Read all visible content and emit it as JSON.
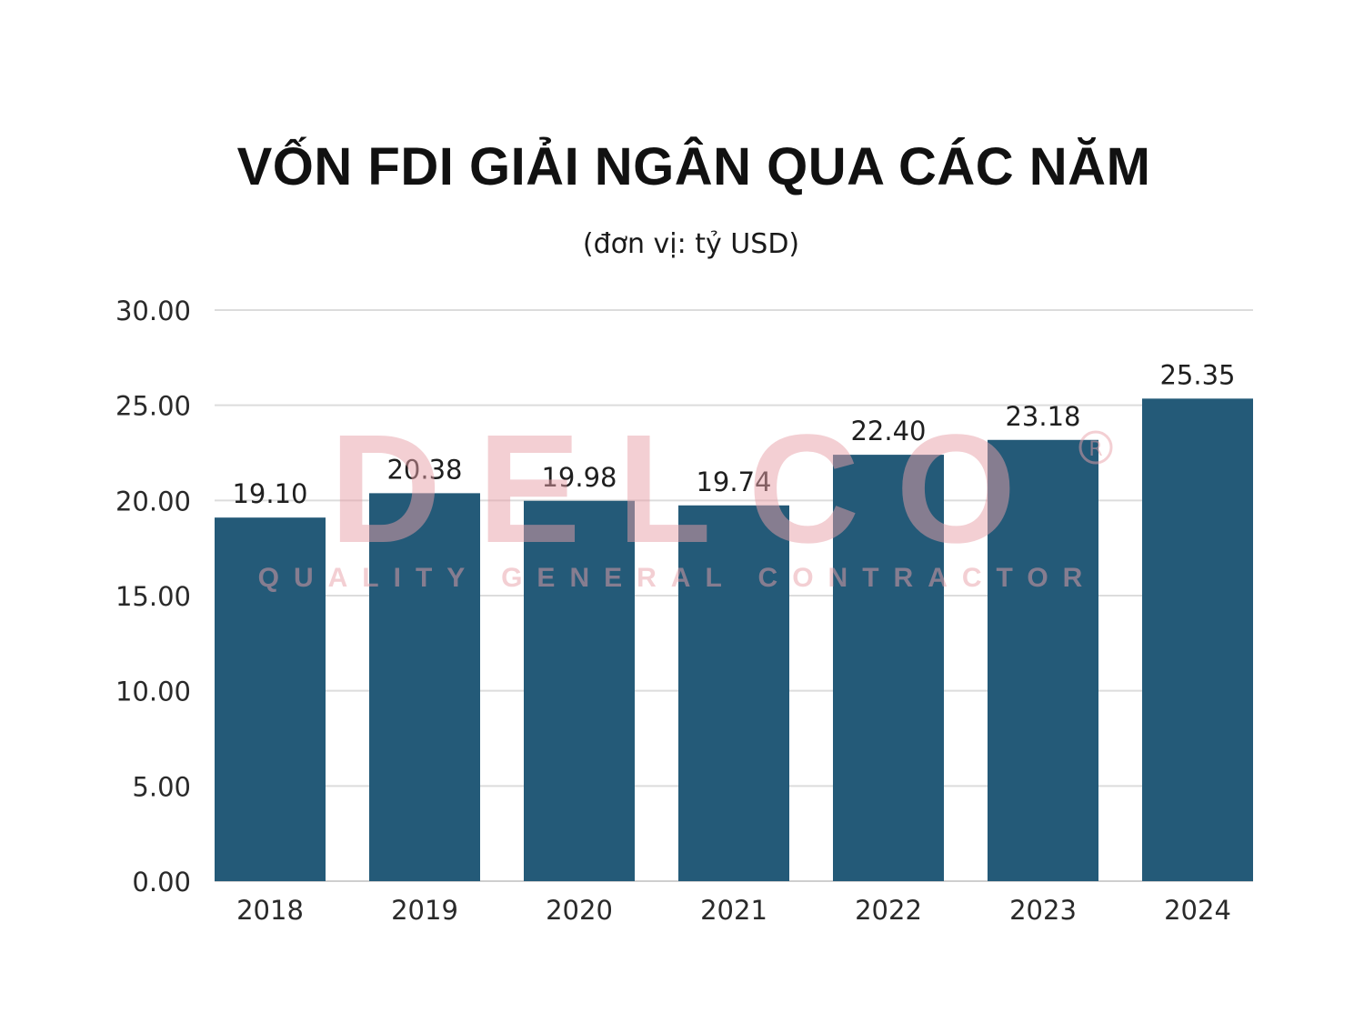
{
  "chart_data": {
    "type": "bar",
    "title": "VỐN FDI GIẢI NGÂN QUA CÁC NĂM",
    "subtitle": "(đơn vị: tỷ USD)",
    "categories": [
      "2018",
      "2019",
      "2020",
      "2021",
      "2022",
      "2023",
      "2024"
    ],
    "values": [
      19.1,
      20.38,
      19.98,
      19.74,
      22.4,
      23.18,
      25.35
    ],
    "value_labels": [
      "19.10",
      "20.38",
      "19.98",
      "19.74",
      "22.40",
      "23.18",
      "25.35"
    ],
    "ylim": [
      0,
      30
    ],
    "yticks": [
      "0.00",
      "5.00",
      "10.00",
      "15.00",
      "20.00",
      "25.00",
      "30.00"
    ],
    "grid": true,
    "bar_color": "#245a78"
  },
  "watermark": {
    "logo_text": "DELCO",
    "tagline": "QUALITY GENERAL CONTRACTOR",
    "mark": "®",
    "color": "#e8a0a8"
  }
}
